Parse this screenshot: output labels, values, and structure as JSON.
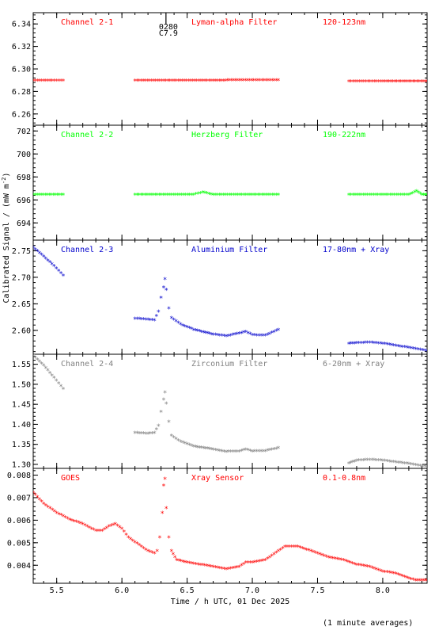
{
  "chart_data": {
    "type": "scatter",
    "xlabel": "Time / h UTC, 01 Dec 2025",
    "ylabel": "Calibrated Signal / (mW m",
    "ylabel_sup": "-2",
    "ylabel_close": ")",
    "xlim": [
      5.32,
      8.34
    ],
    "xticks": [
      5.5,
      6.0,
      6.5,
      7.0,
      7.5,
      8.0
    ],
    "xtick_labels": [
      "5.5",
      "6.0",
      "6.5",
      "7.0",
      "7.5",
      "8.0"
    ],
    "marker_annotation": {
      "x": 6.35,
      "lines": [
        "0280",
        "C7.9"
      ]
    },
    "footer": "(1 minute averages)",
    "panels": [
      {
        "channel": "Channel 2-1",
        "filter": "Lyman-alpha Filter",
        "band": "120-123nm",
        "color": "#ff0000",
        "ylim": [
          6.25,
          6.35
        ],
        "yticks": [
          6.26,
          6.28,
          6.3,
          6.32,
          6.34
        ],
        "ytick_labels": [
          "6.26",
          "6.28",
          "6.30",
          "6.32",
          "6.34"
        ],
        "segments": [
          {
            "x": [
              5.32,
              5.4,
              5.48,
              5.55
            ],
            "y": [
              6.289,
              6.289,
              6.289,
              6.289
            ]
          },
          {
            "x": [
              6.1,
              6.4,
              6.7,
              6.9,
              7.2
            ],
            "y": [
              6.289,
              6.289,
              6.289,
              6.2895,
              6.2895
            ]
          },
          {
            "x": [
              7.74,
              8.0,
              8.34
            ],
            "y": [
              6.2885,
              6.2885,
              6.2885
            ]
          }
        ]
      },
      {
        "channel": "Channel 2-2",
        "filter": "Herzberg Filter",
        "band": "190-222nm",
        "color": "#00ff00",
        "ylim": [
          692.5,
          702.5
        ],
        "yticks": [
          694,
          696,
          698,
          700,
          702
        ],
        "ytick_labels": [
          "694",
          "696",
          "698",
          "700",
          "702"
        ],
        "segments": [
          {
            "x": [
              5.32,
              5.55
            ],
            "y": [
              696.4,
              696.4
            ]
          },
          {
            "x": [
              6.1,
              6.55,
              6.62,
              6.7,
              7.2
            ],
            "y": [
              696.4,
              696.4,
              696.6,
              696.4,
              696.4
            ]
          },
          {
            "x": [
              7.74,
              8.2,
              8.26,
              8.3,
              8.34
            ],
            "y": [
              696.4,
              696.4,
              696.7,
              696.4,
              696.4
            ]
          }
        ]
      },
      {
        "channel": "Channel 2-3",
        "filter": "Aluminium Filter",
        "band": "17-80nm + Xray",
        "color": "#0000cc",
        "ylim": [
          2.555,
          2.77
        ],
        "yticks": [
          2.6,
          2.65,
          2.7,
          2.75
        ],
        "ytick_labels": [
          "2.60",
          "2.65",
          "2.70",
          "2.75"
        ],
        "segments": [
          {
            "x": [
              5.32,
              5.4,
              5.48,
              5.55
            ],
            "y": [
              2.755,
              2.738,
              2.72,
              2.702
            ]
          },
          {
            "x": [
              6.1,
              6.2,
              6.25,
              6.28,
              6.3,
              6.32,
              6.33,
              6.34,
              6.36,
              6.38,
              6.45,
              6.55,
              6.7,
              6.8,
              6.9,
              6.95,
              7.0,
              7.1,
              7.2
            ],
            "y": [
              2.621,
              2.619,
              2.618,
              2.634,
              2.66,
              2.68,
              2.695,
              2.675,
              2.64,
              2.622,
              2.61,
              2.6,
              2.591,
              2.588,
              2.593,
              2.596,
              2.59,
              2.589,
              2.6
            ]
          },
          {
            "x": [
              7.74,
              7.8,
              7.9,
              8.0,
              8.1,
              8.2,
              8.27,
              8.34
            ],
            "y": [
              2.574,
              2.575,
              2.576,
              2.574,
              2.57,
              2.566,
              2.563,
              2.56
            ]
          }
        ]
      },
      {
        "channel": "Channel 2-4",
        "filter": "Zirconium Filter",
        "band": "6-20nm + Xray",
        "color": "#808080",
        "ylim": [
          1.29,
          1.575
        ],
        "yticks": [
          1.3,
          1.35,
          1.4,
          1.45,
          1.5,
          1.55
        ],
        "ytick_labels": [
          "1.30",
          "1.35",
          "1.40",
          "1.45",
          "1.50",
          "1.55"
        ],
        "segments": [
          {
            "x": [
              5.32,
              5.4,
              5.48,
              5.55
            ],
            "y": [
              1.57,
              1.545,
              1.515,
              1.487
            ]
          },
          {
            "x": [
              6.1,
              6.2,
              6.25,
              6.28,
              6.3,
              6.32,
              6.33,
              6.34,
              6.36,
              6.38,
              6.45,
              6.55,
              6.7,
              6.8,
              6.9,
              6.95,
              7.0,
              7.1,
              7.2
            ],
            "y": [
              1.377,
              1.375,
              1.377,
              1.395,
              1.43,
              1.46,
              1.478,
              1.45,
              1.405,
              1.37,
              1.355,
              1.343,
              1.336,
              1.33,
              1.331,
              1.336,
              1.331,
              1.332,
              1.339
            ]
          },
          {
            "x": [
              7.74,
              7.8,
              7.9,
              8.0,
              8.1,
              8.2,
              8.27,
              8.34
            ],
            "y": [
              1.301,
              1.308,
              1.31,
              1.308,
              1.304,
              1.3,
              1.296,
              1.293
            ]
          }
        ]
      },
      {
        "channel": "GOES",
        "filter": "Xray Sensor",
        "band": "0.1-0.8nm",
        "color": "#ff0000",
        "ylim": [
          0.0032,
          0.0083
        ],
        "yticks": [
          0.004,
          0.005,
          0.006,
          0.007,
          0.008
        ],
        "ytick_labels": [
          "0.004",
          "0.005",
          "0.006",
          "0.007",
          "0.008"
        ],
        "segments": [
          {
            "x": [
              5.32,
              5.4,
              5.5,
              5.6,
              5.7,
              5.8,
              5.85,
              5.9,
              5.95,
              6.0,
              6.05,
              6.1,
              6.15,
              6.2,
              6.25,
              6.27,
              6.29,
              6.31,
              6.32,
              6.33,
              6.34,
              6.36,
              6.38,
              6.42,
              6.5,
              6.6,
              6.7,
              6.8,
              6.9,
              6.95,
              7.0,
              7.1,
              7.2,
              7.25,
              7.3,
              7.35,
              7.4,
              7.5,
              7.6,
              7.7,
              7.8,
              7.9,
              8.0,
              8.1,
              8.2,
              8.25,
              8.34
            ],
            "y": [
              0.0072,
              0.0067,
              0.0063,
              0.006,
              0.0058,
              0.0055,
              0.0055,
              0.0057,
              0.0058,
              0.0056,
              0.0052,
              0.005,
              0.0048,
              0.0046,
              0.0045,
              0.0046,
              0.0052,
              0.0063,
              0.0075,
              0.0078,
              0.0065,
              0.0052,
              0.0046,
              0.0042,
              0.0041,
              0.004,
              0.0039,
              0.0038,
              0.0039,
              0.0041,
              0.0041,
              0.0042,
              0.0046,
              0.0048,
              0.0048,
              0.0048,
              0.0047,
              0.0045,
              0.0043,
              0.0042,
              0.004,
              0.0039,
              0.0037,
              0.0036,
              0.0034,
              0.0033,
              0.0033
            ]
          }
        ]
      }
    ]
  }
}
